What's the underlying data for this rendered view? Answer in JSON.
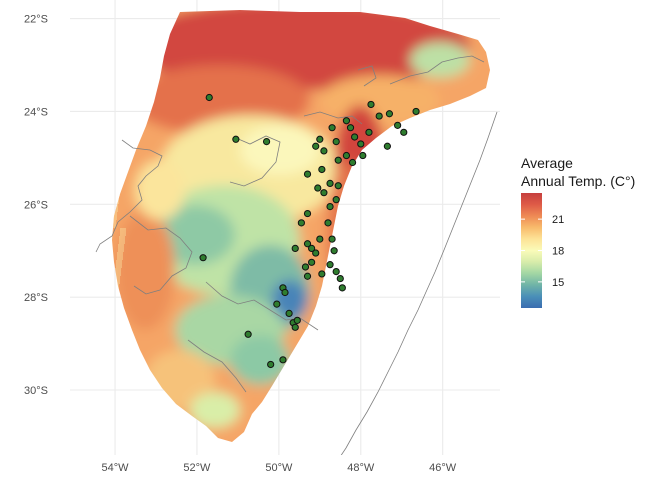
{
  "chart_data": {
    "type": "map",
    "title": "",
    "xlabel": "",
    "ylabel": "",
    "x_ticks": [
      {
        "value": -54,
        "label": "54°W"
      },
      {
        "value": -52,
        "label": "52°W"
      },
      {
        "value": -50,
        "label": "50°W"
      },
      {
        "value": -48,
        "label": "48°W"
      },
      {
        "value": -46,
        "label": "46°W"
      }
    ],
    "y_ticks": [
      {
        "value": -22,
        "label": "22°S"
      },
      {
        "value": -24,
        "label": "24°S"
      },
      {
        "value": -26,
        "label": "26°S"
      },
      {
        "value": -28,
        "label": "28°S"
      },
      {
        "value": -30,
        "label": "30°S"
      }
    ],
    "xlim": [
      -55.1,
      -44.6
    ],
    "ylim": [
      -31.4,
      -21.6
    ],
    "grid": true,
    "legend": {
      "title_line1": "Average",
      "title_line2": "Annual Temp. (C°)",
      "breaks": [
        15,
        18,
        21
      ],
      "break_labels": [
        "15",
        "18",
        "21"
      ],
      "range": [
        12.5,
        23.5
      ],
      "palette": [
        "#3a6cb0",
        "#4a8fb8",
        "#6fb3a7",
        "#a2d6a4",
        "#d7ecaa",
        "#fafbb9",
        "#fde397",
        "#f8bb6c",
        "#ee8a55",
        "#de5b47",
        "#c63f3e"
      ],
      "placement": "right"
    },
    "points": [
      {
        "lon": -51.7,
        "lat": -23.7
      },
      {
        "lon": -51.05,
        "lat": -24.6
      },
      {
        "lon": -50.3,
        "lat": -24.65
      },
      {
        "lon": -49.3,
        "lat": -25.35
      },
      {
        "lon": -49.0,
        "lat": -24.6
      },
      {
        "lon": -49.1,
        "lat": -24.75
      },
      {
        "lon": -48.9,
        "lat": -24.85
      },
      {
        "lon": -48.6,
        "lat": -24.65
      },
      {
        "lon": -48.7,
        "lat": -24.35
      },
      {
        "lon": -48.35,
        "lat": -24.2
      },
      {
        "lon": -48.25,
        "lat": -24.35
      },
      {
        "lon": -48.15,
        "lat": -24.55
      },
      {
        "lon": -48.0,
        "lat": -24.7
      },
      {
        "lon": -47.8,
        "lat": -24.45
      },
      {
        "lon": -47.55,
        "lat": -24.1
      },
      {
        "lon": -47.75,
        "lat": -23.85
      },
      {
        "lon": -47.3,
        "lat": -24.05
      },
      {
        "lon": -47.1,
        "lat": -24.3
      },
      {
        "lon": -46.95,
        "lat": -24.45
      },
      {
        "lon": -46.65,
        "lat": -24.0
      },
      {
        "lon": -47.35,
        "lat": -24.75
      },
      {
        "lon": -47.95,
        "lat": -24.95
      },
      {
        "lon": -48.2,
        "lat": -25.1
      },
      {
        "lon": -48.35,
        "lat": -24.95
      },
      {
        "lon": -48.55,
        "lat": -25.05
      },
      {
        "lon": -48.95,
        "lat": -25.25
      },
      {
        "lon": -49.05,
        "lat": -25.65
      },
      {
        "lon": -48.9,
        "lat": -25.75
      },
      {
        "lon": -48.75,
        "lat": -25.55
      },
      {
        "lon": -48.55,
        "lat": -25.6
      },
      {
        "lon": -48.6,
        "lat": -25.9
      },
      {
        "lon": -48.75,
        "lat": -26.05
      },
      {
        "lon": -48.8,
        "lat": -26.4
      },
      {
        "lon": -48.7,
        "lat": -26.75
      },
      {
        "lon": -48.65,
        "lat": -27.0
      },
      {
        "lon": -48.75,
        "lat": -27.3
      },
      {
        "lon": -48.6,
        "lat": -27.45
      },
      {
        "lon": -48.5,
        "lat": -27.6
      },
      {
        "lon": -48.45,
        "lat": -27.8
      },
      {
        "lon": -49.3,
        "lat": -26.2
      },
      {
        "lon": -49.45,
        "lat": -26.4
      },
      {
        "lon": -49.6,
        "lat": -26.95
      },
      {
        "lon": -49.3,
        "lat": -26.85
      },
      {
        "lon": -49.2,
        "lat": -26.95
      },
      {
        "lon": -49.1,
        "lat": -27.05
      },
      {
        "lon": -49.0,
        "lat": -26.75
      },
      {
        "lon": -49.2,
        "lat": -27.25
      },
      {
        "lon": -49.35,
        "lat": -27.35
      },
      {
        "lon": -48.95,
        "lat": -27.5
      },
      {
        "lon": -49.3,
        "lat": -27.55
      },
      {
        "lon": -51.85,
        "lat": -27.15
      },
      {
        "lon": -49.9,
        "lat": -27.8
      },
      {
        "lon": -49.85,
        "lat": -27.9
      },
      {
        "lon": -50.05,
        "lat": -28.15
      },
      {
        "lon": -49.75,
        "lat": -28.35
      },
      {
        "lon": -49.65,
        "lat": -28.55
      },
      {
        "lon": -49.6,
        "lat": -28.65
      },
      {
        "lon": -49.55,
        "lat": -28.5
      },
      {
        "lon": -50.75,
        "lat": -28.8
      },
      {
        "lon": -49.9,
        "lat": -29.35
      },
      {
        "lon": -50.2,
        "lat": -29.45
      }
    ]
  }
}
